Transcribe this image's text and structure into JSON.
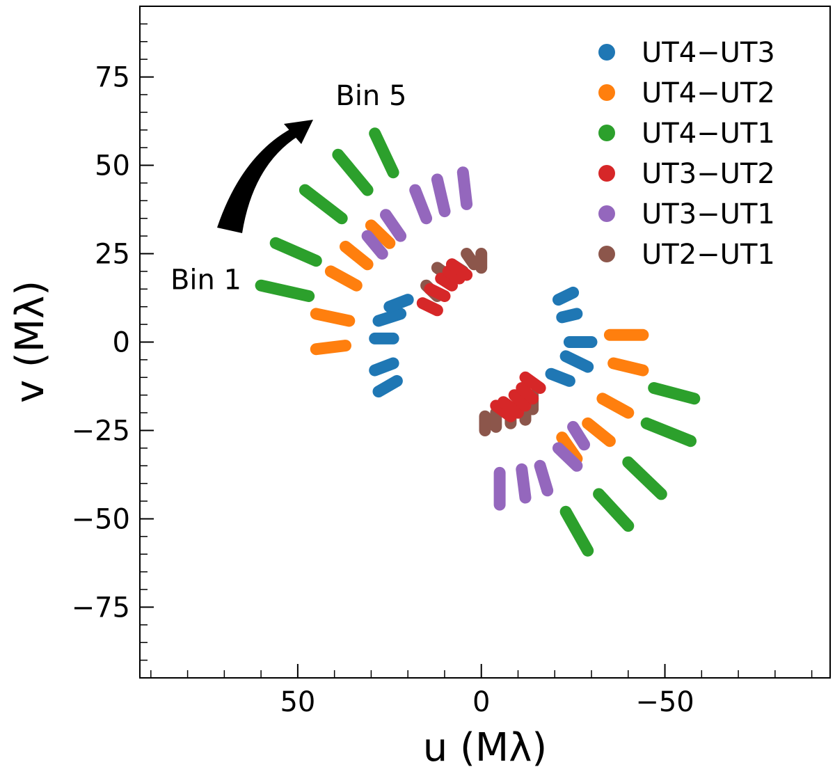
{
  "chart_data": {
    "type": "scatter",
    "title": "",
    "xlabel": "u (Mλ)",
    "ylabel": "v (Mλ)",
    "xlim": [
      93,
      -95
    ],
    "ylim": [
      -95,
      95
    ],
    "x_reversed": true,
    "xticks": [
      50,
      0,
      -50
    ],
    "xtick_labels": [
      "50",
      "0",
      "−50"
    ],
    "yticks": [
      75,
      50,
      25,
      0,
      -25,
      -50,
      -75
    ],
    "ytick_labels": [
      "75",
      "50",
      "25",
      "0",
      "−25",
      "−50",
      "−75"
    ],
    "grid": false,
    "legend": {
      "position": "top-right"
    },
    "annotations": [
      {
        "text": "Bin 1",
        "x": 75,
        "y": 15
      },
      {
        "text": "Bin 5",
        "x": 30,
        "y": 67
      }
    ],
    "series": [
      {
        "name": "UT4−UT3",
        "color": "#1f77b4",
        "tracks": [
          [
            [
              28,
              -14
            ],
            [
              23,
              -11
            ]
          ],
          [
            [
              29,
              -8
            ],
            [
              24,
              -6
            ]
          ],
          [
            [
              29,
              1
            ],
            [
              24,
              1
            ]
          ],
          [
            [
              28,
              6
            ],
            [
              22,
              8
            ]
          ],
          [
            [
              25,
              10
            ],
            [
              20,
              12
            ]
          ],
          [
            [
              -21,
              12
            ],
            [
              -25,
              14
            ]
          ],
          [
            [
              -22,
              7
            ],
            [
              -26,
              8
            ]
          ],
          [
            [
              -24,
              0
            ],
            [
              -30,
              0
            ]
          ],
          [
            [
              -23,
              -4
            ],
            [
              -29,
              -7
            ]
          ],
          [
            [
              -19,
              -9
            ],
            [
              -24,
              -11
            ]
          ]
        ]
      },
      {
        "name": "UT4−UT2",
        "color": "#ff7f0e",
        "tracks": [
          [
            [
              45,
              -2
            ],
            [
              37,
              -1
            ]
          ],
          [
            [
              45,
              8
            ],
            [
              36,
              6
            ]
          ],
          [
            [
              41,
              20
            ],
            [
              34,
              16
            ]
          ],
          [
            [
              37,
              27
            ],
            [
              31,
              22
            ]
          ],
          [
            [
              30,
              33
            ],
            [
              25,
              28
            ]
          ],
          [
            [
              -35,
              2
            ],
            [
              -44,
              2
            ]
          ],
          [
            [
              -36,
              -6
            ],
            [
              -44,
              -8
            ]
          ],
          [
            [
              -33,
              -16
            ],
            [
              -40,
              -20
            ]
          ],
          [
            [
              -29,
              -23
            ],
            [
              -35,
              -28
            ]
          ],
          [
            [
              -22,
              -27
            ],
            [
              -26,
              -33
            ]
          ]
        ]
      },
      {
        "name": "UT4−UT1",
        "color": "#2ca02c",
        "tracks": [
          [
            [
              60,
              16
            ],
            [
              47,
              13
            ]
          ],
          [
            [
              56,
              28
            ],
            [
              45,
              23
            ]
          ],
          [
            [
              48,
              43
            ],
            [
              38,
              35
            ]
          ],
          [
            [
              39,
              53
            ],
            [
              31,
              43
            ]
          ],
          [
            [
              29,
              59
            ],
            [
              24,
              48
            ]
          ],
          [
            [
              -47,
              -13
            ],
            [
              -58,
              -16
            ]
          ],
          [
            [
              -45,
              -23
            ],
            [
              -57,
              -28
            ]
          ],
          [
            [
              -40,
              -34
            ],
            [
              -49,
              -43
            ]
          ],
          [
            [
              -32,
              -43
            ],
            [
              -40,
              -52
            ]
          ],
          [
            [
              -23,
              -48
            ],
            [
              -29,
              -59
            ]
          ]
        ]
      },
      {
        "name": "UT3−UT1",
        "color": "#9467bd",
        "tracks": [
          [
            [
              31,
              30
            ],
            [
              27,
              25
            ]
          ],
          [
            [
              26,
              36
            ],
            [
              22,
              30
            ]
          ],
          [
            [
              18,
              43
            ],
            [
              15,
              35
            ]
          ],
          [
            [
              12,
              46
            ],
            [
              10,
              37
            ]
          ],
          [
            [
              5,
              48
            ],
            [
              4,
              39
            ]
          ],
          [
            [
              -5,
              -37
            ],
            [
              -5,
              -46
            ]
          ],
          [
            [
              -11,
              -36
            ],
            [
              -12,
              -44
            ]
          ],
          [
            [
              -16,
              -35
            ],
            [
              -18,
              -42
            ]
          ],
          [
            [
              -21,
              -30
            ],
            [
              -26,
              -35
            ]
          ],
          [
            [
              -25,
              -24
            ],
            [
              -28,
              -29
            ]
          ]
        ]
      },
      {
        "name": "UT2−UT1",
        "color": "#8c564b",
        "tracks": [
          [
            [
              15,
              16
            ],
            [
              12,
              13
            ]
          ],
          [
            [
              12,
              21
            ],
            [
              8,
              18
            ]
          ],
          [
            [
              8,
              22
            ],
            [
              5,
              20
            ]
          ],
          [
            [
              4,
              25
            ],
            [
              2,
              22
            ]
          ],
          [
            [
              0,
              25
            ],
            [
              0,
              21
            ]
          ],
          [
            [
              -1,
              -21
            ],
            [
              -1,
              -25
            ]
          ],
          [
            [
              -4,
              -20
            ],
            [
              -4,
              -24
            ]
          ],
          [
            [
              -8,
              -19
            ],
            [
              -8,
              -23
            ]
          ],
          [
            [
              -12,
              -18
            ],
            [
              -12,
              -22
            ]
          ],
          [
            [
              -14,
              -15
            ],
            [
              -14,
              -19
            ]
          ]
        ]
      },
      {
        "name": "UT3−UT2",
        "color": "#d62728",
        "tracks": [
          [
            [
              16,
              11
            ],
            [
              12,
              9
            ]
          ],
          [
            [
              14,
              15
            ],
            [
              10,
              13
            ]
          ],
          [
            [
              11,
              18
            ],
            [
              8,
              16
            ]
          ],
          [
            [
              9,
              20
            ],
            [
              6,
              18
            ]
          ],
          [
            [
              8,
              22
            ],
            [
              4,
              19
            ]
          ],
          [
            [
              -4,
              -18
            ],
            [
              -8,
              -21
            ]
          ],
          [
            [
              -6,
              -17
            ],
            [
              -10,
              -20
            ]
          ],
          [
            [
              -9,
              -15
            ],
            [
              -12,
              -18
            ]
          ],
          [
            [
              -11,
              -13
            ],
            [
              -14,
              -16
            ]
          ],
          [
            [
              -12,
              -10
            ],
            [
              -16,
              -13
            ]
          ]
        ]
      }
    ]
  },
  "legend_items": [
    {
      "label": "UT4−UT3",
      "color": "#1f77b4"
    },
    {
      "label": "UT4−UT2",
      "color": "#ff7f0e"
    },
    {
      "label": "UT4−UT1",
      "color": "#2ca02c"
    },
    {
      "label": "UT3−UT2",
      "color": "#d62728"
    },
    {
      "label": "UT3−UT1",
      "color": "#9467bd"
    },
    {
      "label": "UT2−UT1",
      "color": "#8c564b"
    }
  ]
}
